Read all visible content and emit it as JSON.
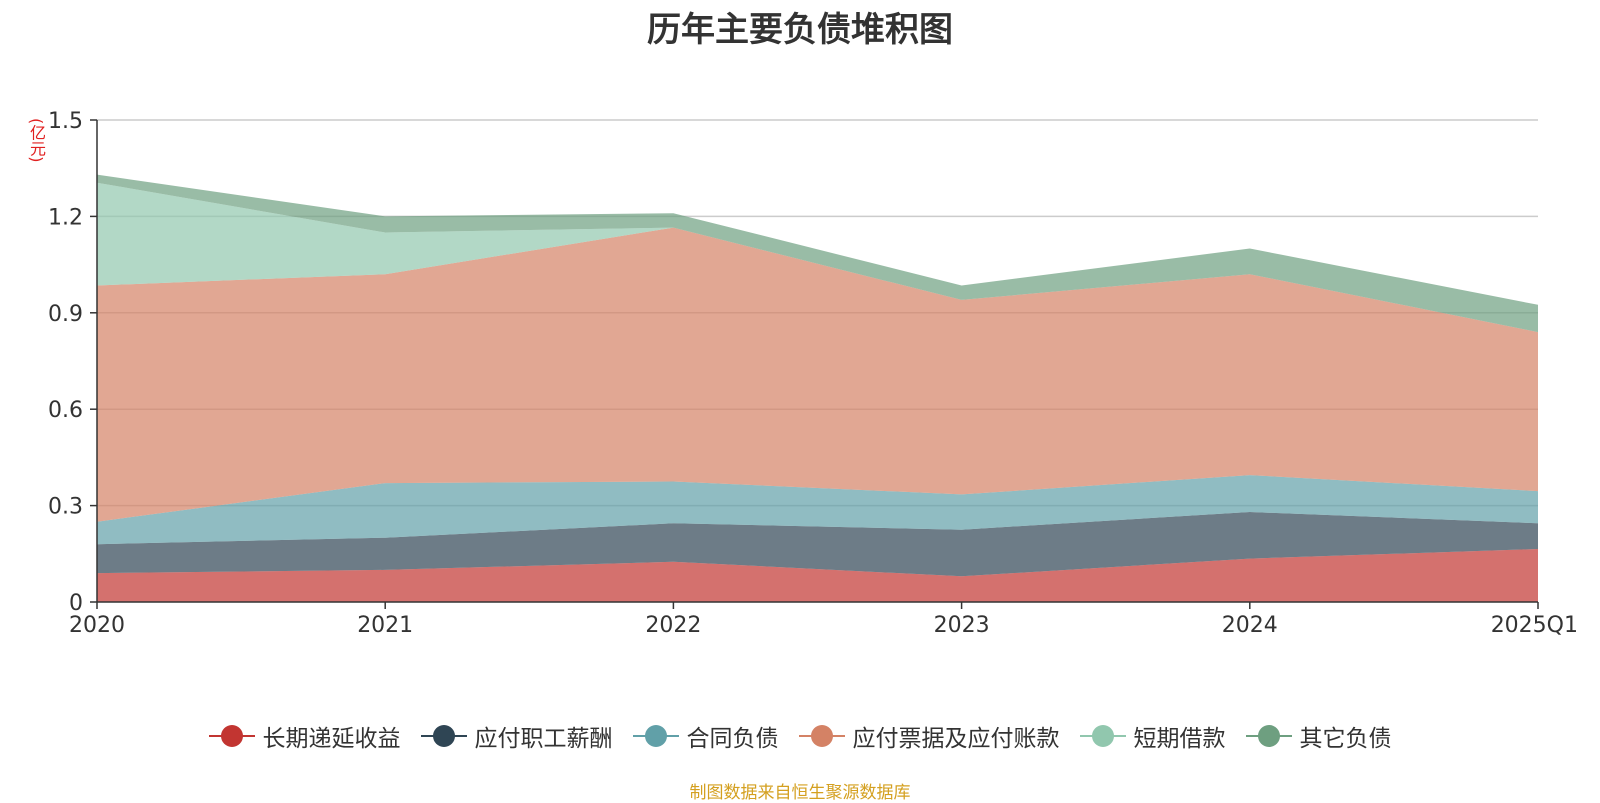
{
  "chart_data": {
    "type": "area",
    "stacked": true,
    "title": "历年主要负债堆积图",
    "unit_label": "(亿元)",
    "categories": [
      "2020",
      "2021",
      "2022",
      "2023",
      "2024",
      "2025Q1"
    ],
    "yticks": [
      "0",
      "0.3",
      "0.6",
      "0.9",
      "1.2",
      "1.5"
    ],
    "ylim": [
      0,
      1.5
    ],
    "grid": true,
    "legend_position": "bottom",
    "series": [
      {
        "name": "长期递延收益",
        "color": "#c23531",
        "values": [
          0.09,
          0.1,
          0.125,
          0.08,
          0.135,
          0.165
        ]
      },
      {
        "name": "应付职工薪酬",
        "color": "#2f4554",
        "values": [
          0.09,
          0.1,
          0.12,
          0.145,
          0.145,
          0.08
        ]
      },
      {
        "name": "合同负债",
        "color": "#61a0a8",
        "values": [
          0.07,
          0.17,
          0.13,
          0.11,
          0.115,
          0.1
        ]
      },
      {
        "name": "应付票据及应付账款",
        "color": "#d48265",
        "values": [
          0.735,
          0.65,
          0.79,
          0.605,
          0.625,
          0.495
        ]
      },
      {
        "name": "短期借款",
        "color": "#91c7ae",
        "values": [
          0.32,
          0.13,
          0.0,
          0.0,
          0.0,
          0.0
        ]
      },
      {
        "name": "其它负债",
        "color": "#6e9f80",
        "values": [
          0.025,
          0.05,
          0.045,
          0.045,
          0.08,
          0.085
        ]
      }
    ]
  },
  "source_note": "制图数据来自恒生聚源数据库"
}
